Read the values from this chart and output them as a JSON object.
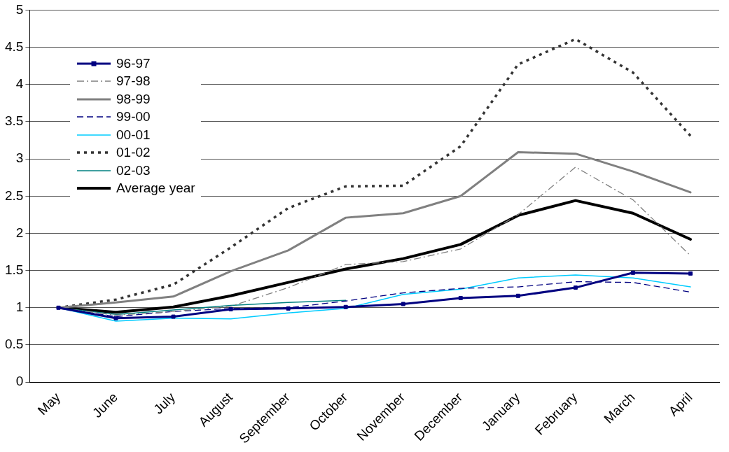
{
  "chart_data": {
    "type": "line",
    "categories": [
      "May",
      "June",
      "July",
      "August",
      "September",
      "October",
      "November",
      "December",
      "January",
      "February",
      "March",
      "April"
    ],
    "ylim": [
      0,
      5
    ],
    "yticks": [
      0,
      0.5,
      1,
      1.5,
      2,
      2.5,
      3,
      3.5,
      4,
      4.5,
      5
    ],
    "grid": "y",
    "legend": "top left",
    "series": [
      {
        "name": "96-97",
        "color": "#000080",
        "marker": "square",
        "line_style": "solid",
        "values": [
          1,
          0.86,
          0.88,
          0.98,
          0.99,
          1.01,
          1.05,
          1.13,
          1.16,
          1.27,
          1.47,
          1.46
        ]
      },
      {
        "name": "97-98",
        "color": "#808080",
        "marker": "none",
        "line_style": "dashdot",
        "values": [
          1,
          0.9,
          0.95,
          1.02,
          1.27,
          1.58,
          1.62,
          1.79,
          2.25,
          2.89,
          2.45,
          1.7
        ]
      },
      {
        "name": "98-99",
        "color": "#808080",
        "marker": "none",
        "line_style": "solid",
        "values": [
          1,
          1.07,
          1.15,
          1.49,
          1.77,
          2.21,
          2.27,
          2.5,
          3.09,
          3.07,
          2.83,
          2.55
        ]
      },
      {
        "name": "99-00",
        "color": "#000080",
        "marker": "none",
        "line_style": "dashed",
        "values": [
          1,
          0.88,
          0.95,
          0.99,
          1,
          1.09,
          1.2,
          1.26,
          1.28,
          1.35,
          1.34,
          1.21
        ]
      },
      {
        "name": "00-01",
        "color": "#00ccff",
        "marker": "none",
        "line_style": "solid",
        "values": [
          1,
          0.82,
          0.86,
          0.85,
          0.93,
          0.99,
          1.18,
          1.25,
          1.4,
          1.44,
          1.4,
          1.28
        ]
      },
      {
        "name": "01-02",
        "color": "#333333",
        "marker": "none",
        "line_style": "dotted",
        "values": [
          1,
          1.11,
          1.31,
          1.81,
          2.34,
          2.63,
          2.64,
          3.17,
          4.27,
          4.61,
          4.16,
          3.31
        ]
      },
      {
        "name": "02-03",
        "color": "#008080",
        "marker": "none",
        "line_style": "solid",
        "values": [
          1,
          0.91,
          0.97,
          1.03,
          1.07,
          1.1,
          null,
          null,
          null,
          null,
          null,
          null
        ]
      },
      {
        "name": "Average year",
        "color": "#000000",
        "marker": "none",
        "line_style": "solid",
        "values": [
          1,
          0.94,
          1.01,
          1.16,
          1.34,
          1.52,
          1.66,
          1.85,
          2.24,
          2.44,
          2.27,
          1.92
        ]
      }
    ]
  }
}
